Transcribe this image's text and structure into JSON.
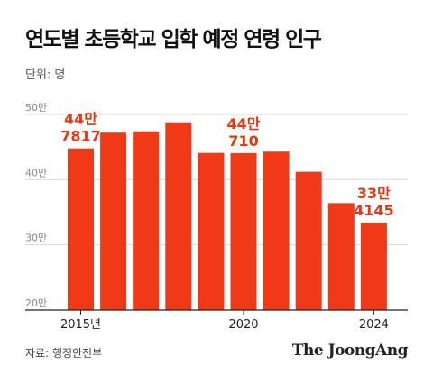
{
  "header": {
    "title": "연도별 초등학교 입학 예정 연령 인구",
    "unit": "단위: 명"
  },
  "footer": {
    "source": "자료: 행정안전부",
    "brand": "The JoongAng"
  },
  "colors": {
    "bar": "#f03a17",
    "label": "#e8360f",
    "grid": "#d9d9d9",
    "axis": "#222222"
  },
  "chart_data": {
    "type": "bar",
    "title": "연도별 초등학교 입학 예정 연령 인구",
    "categories": [
      "2015",
      "2016",
      "2017",
      "2018",
      "2019",
      "2020",
      "2021",
      "2022",
      "2023",
      "2024"
    ],
    "values": [
      447817,
      472000,
      474000,
      488000,
      441000,
      440710,
      443000,
      412000,
      364000,
      334145
    ],
    "ylim": [
      200000,
      500000
    ],
    "yticks": [
      {
        "value": 200000,
        "label": "20만"
      },
      {
        "value": 300000,
        "label": "30만"
      },
      {
        "value": 400000,
        "label": "40만"
      },
      {
        "value": 500000,
        "label": "50만"
      }
    ],
    "xtick_labels": [
      {
        "index": 0,
        "label": "2015년"
      },
      {
        "index": 5,
        "label": "2020"
      },
      {
        "index": 9,
        "label": "2024"
      }
    ],
    "data_labels": [
      {
        "index": 0,
        "line1": "44만",
        "line2": "7817"
      },
      {
        "index": 5,
        "line1": "44만",
        "line2": "710"
      },
      {
        "index": 9,
        "line1": "33만",
        "line2": "4145"
      }
    ],
    "grid": true,
    "legend": "none"
  }
}
